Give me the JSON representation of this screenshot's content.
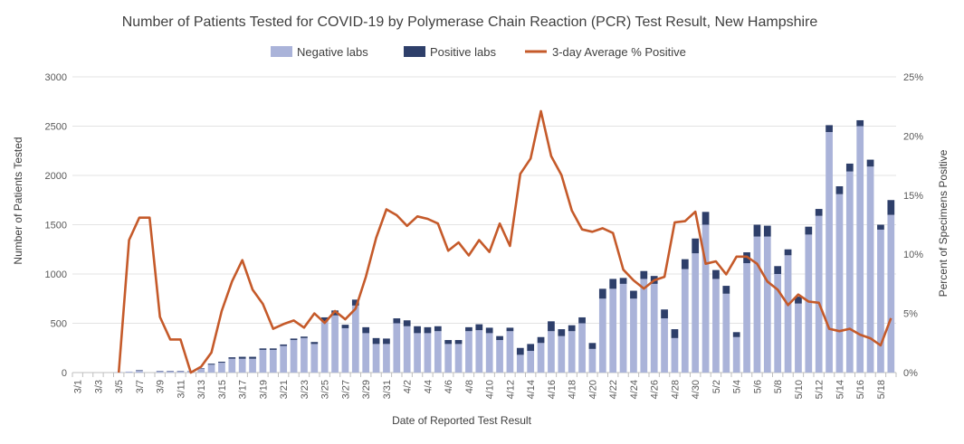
{
  "chart_data": {
    "type": "bar",
    "title": "Number of Patients Tested for COVID-19 by Polymerase Chain Reaction (PCR) Test Result, New Hampshire",
    "xlabel": "Date of Reported Test Result",
    "ylabel": "Number of Patients Tested",
    "y2label": "Percent of Specimens Positive",
    "ylim": [
      0,
      3000
    ],
    "y2lim": [
      0,
      25
    ],
    "yticks": [
      "0",
      "500",
      "1000",
      "1500",
      "2000",
      "2500",
      "3000"
    ],
    "y2ticks": [
      "0%",
      "5%",
      "10%",
      "15%",
      "20%",
      "25%"
    ],
    "legend_position": "top-center",
    "grid": "horizontal",
    "categories": [
      "3/1",
      "3/2",
      "3/3",
      "3/4",
      "3/5",
      "3/6",
      "3/7",
      "3/8",
      "3/9",
      "3/10",
      "3/11",
      "3/12",
      "3/13",
      "3/14",
      "3/15",
      "3/16",
      "3/17",
      "3/18",
      "3/19",
      "3/20",
      "3/21",
      "3/22",
      "3/23",
      "3/24",
      "3/25",
      "3/26",
      "3/27",
      "3/28",
      "3/29",
      "3/30",
      "3/31",
      "4/1",
      "4/2",
      "4/3",
      "4/4",
      "4/5",
      "4/6",
      "4/7",
      "4/8",
      "4/9",
      "4/10",
      "4/11",
      "4/12",
      "4/13",
      "4/14",
      "4/15",
      "4/16",
      "4/17",
      "4/18",
      "4/19",
      "4/20",
      "4/21",
      "4/22",
      "4/23",
      "4/24",
      "4/25",
      "4/26",
      "4/27",
      "4/28",
      "4/29",
      "4/30",
      "5/1",
      "5/2",
      "5/3",
      "5/4",
      "5/5",
      "5/6",
      "5/7",
      "5/8",
      "5/9",
      "5/10",
      "5/11",
      "5/12",
      "5/13",
      "5/14",
      "5/15",
      "5/16",
      "5/17",
      "5/18",
      "5/19"
    ],
    "tick_labels": [
      "3/1",
      "3/3",
      "3/5",
      "3/7",
      "3/9",
      "3/11",
      "3/13",
      "3/15",
      "3/17",
      "3/19",
      "3/21",
      "3/23",
      "3/25",
      "3/27",
      "3/29",
      "3/31",
      "4/2",
      "4/4",
      "4/6",
      "4/8",
      "4/10",
      "4/12",
      "4/14",
      "4/16",
      "4/18",
      "4/20",
      "4/22",
      "4/24",
      "4/26",
      "4/28",
      "4/30",
      "5/2",
      "5/4",
      "5/6",
      "5/8",
      "5/10",
      "5/12",
      "5/14",
      "5/16",
      "5/18"
    ],
    "series": [
      {
        "name": "Negative labs",
        "kind": "bar",
        "color": "#aab3d9",
        "values": [
          0,
          0,
          0,
          0,
          5,
          10,
          20,
          0,
          15,
          15,
          15,
          15,
          40,
          80,
          100,
          140,
          140,
          140,
          230,
          230,
          270,
          330,
          350,
          290,
          520,
          580,
          450,
          680,
          400,
          290,
          290,
          500,
          470,
          400,
          400,
          420,
          290,
          290,
          420,
          430,
          400,
          330,
          420,
          180,
          220,
          300,
          420,
          370,
          420,
          500,
          240,
          750,
          850,
          900,
          750,
          950,
          900,
          550,
          350,
          1050,
          1210,
          1500,
          950,
          800,
          360,
          1110,
          1380,
          1380,
          1000,
          1190,
          700,
          1400,
          1590,
          2440,
          1810,
          2040,
          2500,
          2090,
          1450,
          1600
        ]
      },
      {
        "name": "Positive labs",
        "kind": "bar",
        "color": "#2e3f6a",
        "values": [
          0,
          0,
          0,
          0,
          0,
          0,
          5,
          0,
          3,
          3,
          3,
          2,
          5,
          10,
          10,
          15,
          20,
          20,
          15,
          15,
          15,
          15,
          15,
          20,
          40,
          50,
          35,
          60,
          60,
          60,
          55,
          50,
          60,
          70,
          60,
          50,
          40,
          40,
          40,
          60,
          55,
          40,
          35,
          70,
          70,
          60,
          100,
          70,
          60,
          60,
          60,
          100,
          100,
          60,
          80,
          80,
          80,
          90,
          90,
          100,
          150,
          130,
          90,
          80,
          50,
          110,
          120,
          110,
          80,
          60,
          70,
          80,
          70,
          70,
          80,
          80,
          60,
          70,
          50,
          150
        ]
      },
      {
        "name": "3-day Average % Positive",
        "kind": "line",
        "axis": "right",
        "color": "#c55a2a",
        "values": [
          null,
          null,
          null,
          null,
          0,
          11.2,
          13.1,
          13.1,
          4.7,
          2.8,
          2.8,
          0,
          0.5,
          1.7,
          5.2,
          7.7,
          9.5,
          7,
          5.8,
          3.7,
          4.1,
          4.4,
          3.8,
          5,
          4.2,
          5.2,
          4.5,
          5.4,
          8.1,
          11.4,
          13.8,
          13.3,
          12.4,
          13.2,
          13,
          12.6,
          10.3,
          11,
          9.9,
          11.2,
          10.2,
          12.6,
          10.7,
          16.8,
          18.1,
          22.1,
          18.3,
          16.7,
          13.7,
          12.1,
          11.9,
          12.2,
          11.8,
          8.7,
          7.8,
          7.1,
          7.8,
          8.1,
          12.7,
          12.8,
          13.6,
          9.2,
          9.4,
          8.3,
          9.8,
          9.8,
          9.2,
          7.7,
          7,
          5.7,
          6.6,
          6,
          5.9,
          3.7,
          3.5,
          3.7,
          3.2,
          2.9,
          2.3,
          4.6
        ]
      }
    ]
  }
}
